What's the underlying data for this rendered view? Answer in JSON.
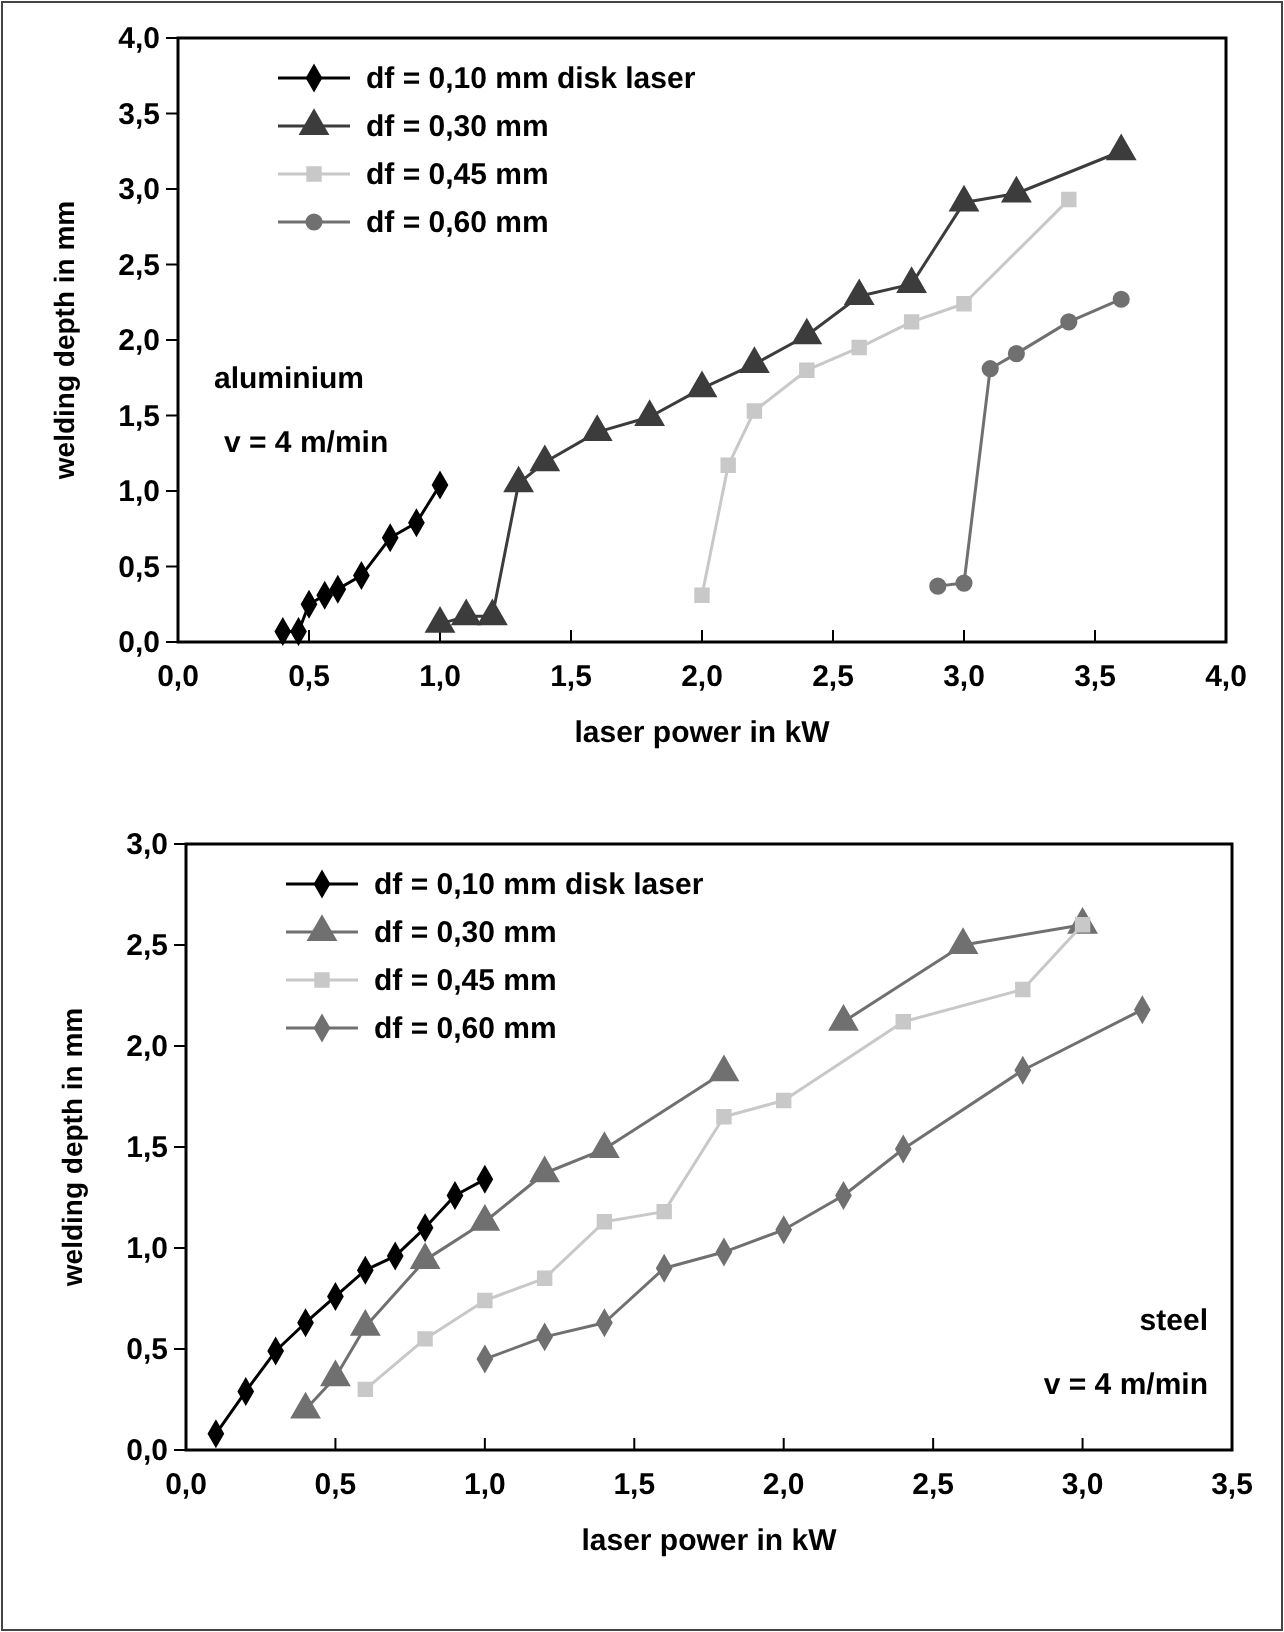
{
  "chart_data": [
    {
      "type": "line",
      "xlabel": "laser power in kW",
      "ylabel": "welding depth in mm",
      "xlim": [
        0,
        4
      ],
      "ylim": [
        0,
        4
      ],
      "xticks": [
        {
          "value": 0,
          "label": "0,0"
        },
        {
          "value": 0.5,
          "label": "0,5"
        },
        {
          "value": 1,
          "label": "1,0"
        },
        {
          "value": 1.5,
          "label": "1,5"
        },
        {
          "value": 2,
          "label": "2,0"
        },
        {
          "value": 2.5,
          "label": "2,5"
        },
        {
          "value": 3,
          "label": "3,0"
        },
        {
          "value": 3.5,
          "label": "3,5"
        },
        {
          "value": 4,
          "label": "4,0"
        }
      ],
      "yticks": [
        {
          "value": 0,
          "label": "0,0"
        },
        {
          "value": 0.5,
          "label": "0,5"
        },
        {
          "value": 1,
          "label": "1,0"
        },
        {
          "value": 1.5,
          "label": "1,5"
        },
        {
          "value": 2,
          "label": "2,0"
        },
        {
          "value": 2.5,
          "label": "2,5"
        },
        {
          "value": 3,
          "label": "3,0"
        },
        {
          "value": 3.5,
          "label": "3,5"
        },
        {
          "value": 4,
          "label": "4,0"
        }
      ],
      "grid": false,
      "legend": "top left",
      "annotations": [
        "aluminium",
        "v = 4 m/min"
      ],
      "series": [
        {
          "name": "df = 0,10 mm disk laser",
          "color": "#000000",
          "marker": "diamond",
          "x": [
            0.4,
            0.46,
            0.5,
            0.56,
            0.61,
            0.7,
            0.81,
            0.91,
            1.0
          ],
          "values": [
            0.07,
            0.07,
            0.25,
            0.31,
            0.35,
            0.44,
            0.69,
            0.79,
            1.04
          ]
        },
        {
          "name": "df = 0,30 mm",
          "color": "#3c3c3c",
          "marker": "triangle",
          "x": [
            1.0,
            1.1,
            1.2,
            1.3,
            1.4,
            1.6,
            1.8,
            2.0,
            2.2,
            2.4,
            2.6,
            2.8,
            3.0,
            3.2,
            3.6
          ],
          "values": [
            0.12,
            0.17,
            0.17,
            1.05,
            1.19,
            1.39,
            1.49,
            1.68,
            1.84,
            2.03,
            2.29,
            2.37,
            2.91,
            2.97,
            3.25
          ]
        },
        {
          "name": "df = 0,45 mm",
          "color": "#c8c8c8",
          "marker": "square",
          "x": [
            2.0,
            2.1,
            2.2,
            2.4,
            2.6,
            2.8,
            3.0,
            3.4
          ],
          "values": [
            0.31,
            1.17,
            1.53,
            1.8,
            1.95,
            2.12,
            2.24,
            2.93
          ]
        },
        {
          "name": "df = 0,60 mm",
          "color": "#707070",
          "marker": "circle",
          "x": [
            2.9,
            3.0,
            3.1,
            3.2,
            3.4,
            3.6
          ],
          "values": [
            0.37,
            0.39,
            1.81,
            1.91,
            2.12,
            2.27
          ]
        }
      ]
    },
    {
      "type": "line",
      "xlabel": "laser power in kW",
      "ylabel": "welding depth in mm",
      "xlim": [
        0,
        3.5
      ],
      "ylim": [
        0,
        3
      ],
      "xticks": [
        {
          "value": 0,
          "label": "0,0"
        },
        {
          "value": 0.5,
          "label": "0,5"
        },
        {
          "value": 1,
          "label": "1,0"
        },
        {
          "value": 1.5,
          "label": "1,5"
        },
        {
          "value": 2,
          "label": "2,0"
        },
        {
          "value": 2.5,
          "label": "2,5"
        },
        {
          "value": 3,
          "label": "3,0"
        },
        {
          "value": 3.5,
          "label": "3,5"
        }
      ],
      "yticks": [
        {
          "value": 0,
          "label": "0,0"
        },
        {
          "value": 0.5,
          "label": "0,5"
        },
        {
          "value": 1,
          "label": "1,0"
        },
        {
          "value": 1.5,
          "label": "1,5"
        },
        {
          "value": 2,
          "label": "2,0"
        },
        {
          "value": 2.5,
          "label": "2,5"
        },
        {
          "value": 3,
          "label": "3,0"
        }
      ],
      "grid": false,
      "legend": "top left",
      "annotations": [
        "steel",
        "v = 4 m/min"
      ],
      "series": [
        {
          "name": "df = 0,10 mm disk laser",
          "color": "#000000",
          "marker": "diamond",
          "x": [
            0.1,
            0.2,
            0.3,
            0.4,
            0.5,
            0.6,
            0.7,
            0.8,
            0.9,
            1.0
          ],
          "values": [
            0.08,
            0.29,
            0.49,
            0.63,
            0.76,
            0.89,
            0.96,
            1.1,
            1.26,
            1.34
          ]
        },
        {
          "name": "df = 0,30 mm",
          "color": "#707070",
          "marker": "triangle",
          "x": [
            0.4,
            0.5,
            0.6,
            0.8,
            1.0,
            1.2,
            1.4,
            1.8,
            2.0,
            2.2,
            2.6,
            3.0
          ],
          "values": [
            0.2,
            0.36,
            0.61,
            0.94,
            1.13,
            1.37,
            1.49,
            1.87,
            null,
            2.12,
            2.5,
            2.6
          ]
        },
        {
          "name": "df = 0,45 mm",
          "color": "#c8c8c8",
          "marker": "square",
          "x": [
            0.6,
            0.8,
            1.0,
            1.2,
            1.4,
            1.6,
            1.8,
            2.0,
            2.4,
            2.8,
            3.0
          ],
          "values": [
            0.3,
            0.55,
            0.74,
            0.85,
            1.13,
            1.18,
            1.65,
            1.73,
            2.12,
            2.28,
            2.6
          ]
        },
        {
          "name": "df = 0,60 mm",
          "color": "#707070",
          "marker": "diamond",
          "x": [
            1.0,
            1.2,
            1.4,
            1.6,
            1.8,
            2.0,
            2.2,
            2.4,
            2.8,
            3.2
          ],
          "values": [
            0.45,
            0.56,
            0.63,
            0.9,
            0.98,
            1.09,
            1.26,
            1.49,
            1.88,
            2.18
          ]
        }
      ]
    }
  ]
}
